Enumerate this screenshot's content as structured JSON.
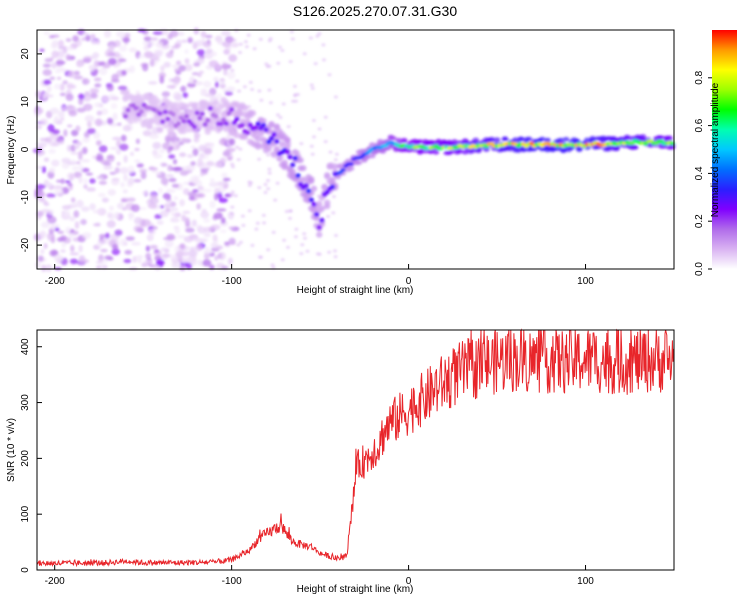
{
  "title": "S126.2025.270.07.31.G30",
  "chart_data": [
    {
      "type": "heatmap",
      "name": "spectrogram",
      "xlabel": "Height of straight line (km)",
      "ylabel": "Frequency (Hz)",
      "xlim": [
        -210,
        150
      ],
      "ylim": [
        -25,
        25
      ],
      "xticks": [
        -200,
        -100,
        0,
        100
      ],
      "yticks": [
        -20,
        -10,
        0,
        10,
        20
      ],
      "colorbar": {
        "label": "Normalized spectral amplitude",
        "range": [
          0,
          1
        ],
        "ticks": [
          "0.0",
          "0.2",
          "0.4",
          "0.6",
          "0.8"
        ],
        "tick_values": [
          0.0,
          0.2,
          0.4,
          0.6,
          0.8
        ],
        "colors": [
          "#ffffff",
          "#d9b3f2",
          "#b06bea",
          "#8000ff",
          "#2a1fff",
          "#0070ff",
          "#00c8ff",
          "#00ffb0",
          "#00ff00",
          "#9dff00",
          "#ffff00",
          "#ff9900",
          "#ff0000"
        ]
      },
      "ridge": [
        {
          "x": -150,
          "f": 8,
          "amp": 0.18
        },
        {
          "x": -125,
          "f": 6,
          "amp": 0.2
        },
        {
          "x": -105,
          "f": 7,
          "amp": 0.2
        },
        {
          "x": -95,
          "f": 6,
          "amp": 0.25
        },
        {
          "x": -85,
          "f": 4,
          "amp": 0.3
        },
        {
          "x": -75,
          "f": 2,
          "amp": 0.32
        },
        {
          "x": -65,
          "f": -3,
          "amp": 0.35
        },
        {
          "x": -55,
          "f": -9,
          "amp": 0.35
        },
        {
          "x": -50,
          "f": -15,
          "amp": 0.3
        },
        {
          "x": -45,
          "f": -7,
          "amp": 0.3
        },
        {
          "x": -40,
          "f": -5,
          "amp": 0.35
        },
        {
          "x": -30,
          "f": -2,
          "amp": 0.4
        },
        {
          "x": -20,
          "f": 0,
          "amp": 0.45
        },
        {
          "x": -10,
          "f": 1.5,
          "amp": 0.55
        },
        {
          "x": 0,
          "f": 0.5,
          "amp": 0.7
        },
        {
          "x": 25,
          "f": 0.5,
          "amp": 0.75
        },
        {
          "x": 50,
          "f": 1,
          "amp": 0.85
        },
        {
          "x": 75,
          "f": 1,
          "amp": 0.9
        },
        {
          "x": 100,
          "f": 1,
          "amp": 0.9
        },
        {
          "x": 125,
          "f": 1.5,
          "amp": 0.8
        },
        {
          "x": 150,
          "f": 1.5,
          "amp": 0.75
        }
      ]
    },
    {
      "type": "line",
      "name": "snr",
      "xlabel": "Height of straight line (km)",
      "ylabel": "SNR (10 * v/v)",
      "xlim": [
        -210,
        150
      ],
      "ylim": [
        0,
        430
      ],
      "xticks": [
        -200,
        -100,
        0,
        100
      ],
      "yticks": [
        0,
        100,
        200,
        300,
        400
      ],
      "color": "#e8252a",
      "series": [
        {
          "name": "SNR",
          "x": [
            -210,
            -190,
            -170,
            -160,
            -150,
            -130,
            -110,
            -100,
            -90,
            -85,
            -80,
            -75,
            -72,
            -68,
            -65,
            -60,
            -55,
            -50,
            -45,
            -40,
            -35,
            -32,
            -30,
            -28,
            -25,
            -22,
            -20,
            -17,
            -15,
            -12,
            -10,
            -7,
            -5,
            -3,
            0,
            5,
            10,
            15,
            20,
            25,
            30,
            40,
            50,
            60,
            70,
            80,
            90,
            100,
            110,
            120,
            130,
            140,
            150
          ],
          "y": [
            12,
            12,
            13,
            16,
            13,
            13,
            14,
            18,
            35,
            55,
            65,
            75,
            80,
            60,
            50,
            45,
            42,
            30,
            25,
            20,
            25,
            100,
            170,
            190,
            195,
            205,
            215,
            220,
            240,
            255,
            265,
            270,
            275,
            280,
            285,
            300,
            310,
            325,
            335,
            345,
            355,
            365,
            375,
            378,
            375,
            375,
            373,
            378,
            375,
            372,
            375,
            377,
            375
          ]
        }
      ]
    }
  ]
}
